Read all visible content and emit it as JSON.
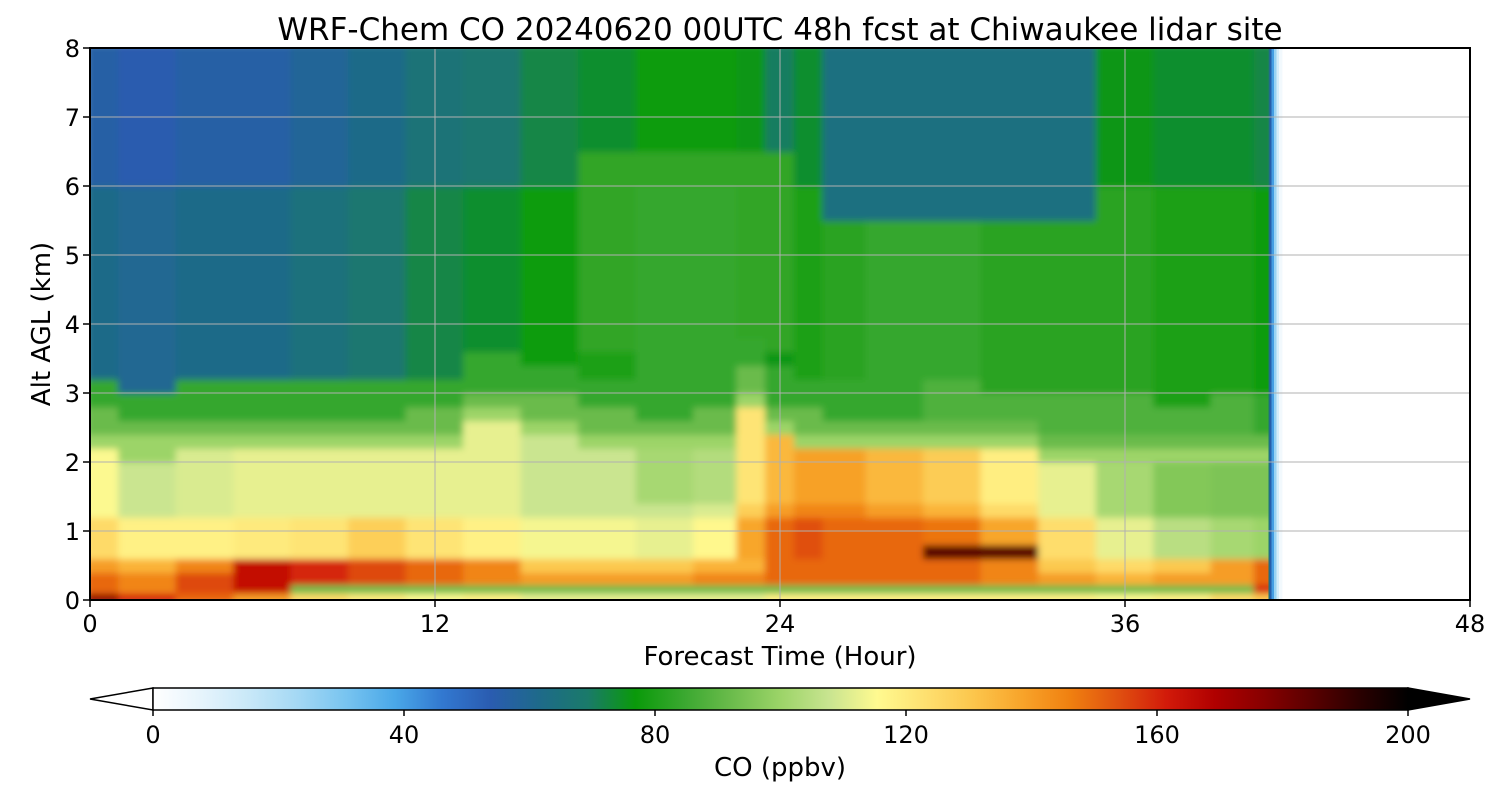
{
  "chart_data": {
    "type": "heatmap",
    "title": "WRF-Chem CO  20240620 00UTC 48h fcst at Chiwaukee lidar site",
    "xlabel": "Forecast Time (Hour)",
    "ylabel": "Alt AGL (km)",
    "xlim": [
      0,
      48
    ],
    "ylim": [
      0,
      8
    ],
    "x_ticks": [
      0,
      12,
      24,
      36,
      48
    ],
    "y_ticks": [
      0,
      1,
      2,
      3,
      4,
      5,
      6,
      7,
      8
    ],
    "grid": true,
    "data_end_hour": 41.2,
    "x": [
      0,
      2,
      4,
      6,
      8,
      10,
      12,
      14,
      16,
      18,
      20,
      22,
      23,
      24,
      25,
      26,
      28,
      30,
      32,
      34,
      36,
      38,
      40,
      41
    ],
    "y": [
      0.05,
      0.15,
      0.3,
      0.5,
      0.7,
      0.9,
      1.1,
      1.3,
      1.5,
      1.7,
      1.9,
      2.1,
      2.3,
      2.5,
      2.7,
      2.9,
      3.1,
      3.3,
      3.5,
      3.7,
      3.9,
      4.25,
      4.75,
      5.25,
      5.75,
      6.25,
      6.75,
      7.25,
      7.75
    ],
    "colorbar": {
      "label": "CO  (ppbv)",
      "vmin": 0,
      "vmax": 200,
      "ticks": [
        0,
        40,
        80,
        120,
        160,
        200
      ],
      "extend": "both",
      "colors": [
        "#ffffff",
        "#e6f4fc",
        "#c8e8f8",
        "#a4d8f4",
        "#78c4f0",
        "#4aa8e8",
        "#3278d0",
        "#2a5cb0",
        "#1e6a8a",
        "#1a7a6a",
        "#0a9a0a",
        "#3aa830",
        "#6cbc4c",
        "#9cd468",
        "#c8e490",
        "#fffa90",
        "#fee070",
        "#fcc64c",
        "#f8a42a",
        "#f08010",
        "#e05010",
        "#d21a0a",
        "#b00000",
        "#880000",
        "#5a0000",
        "#2a0000",
        "#000000"
      ]
    }
  }
}
